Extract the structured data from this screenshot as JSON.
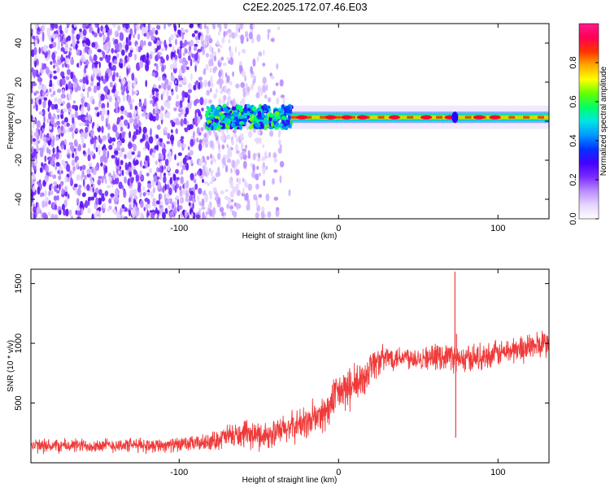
{
  "title": "C2E2.2025.172.07.46.E03",
  "chart_data": [
    {
      "type": "heatmap",
      "xlabel": "Height of straight line (km)",
      "ylabel": "Frequency (Hz)",
      "xlim": [
        -193,
        132
      ],
      "ylim": [
        -50,
        50
      ],
      "xticks": [
        -100,
        0,
        100
      ],
      "yticks": [
        -40,
        -20,
        0,
        20,
        40
      ],
      "colorbar": {
        "label": "Normalized spectral amplitude",
        "range": [
          0,
          1
        ],
        "ticks": [
          0.0,
          0.2,
          0.4,
          0.6,
          0.8
        ],
        "colormap": [
          "#ffffff",
          "#e7d4ff",
          "#b98cff",
          "#7a2cff",
          "#4400ff",
          "#0033ff",
          "#0099ff",
          "#00e5e5",
          "#00ff66",
          "#66ff00",
          "#ffff00",
          "#ffaa00",
          "#ff3300",
          "#ff0055",
          "#ff1a8c"
        ]
      },
      "features": {
        "noise_region_x": [
          -193,
          -40
        ],
        "signal_start_x": -83,
        "signal_center_hz": 2
      }
    },
    {
      "type": "line",
      "xlabel": "Height of straight line (km)",
      "ylabel": "SNR (10 * v/v)",
      "xlim": [
        -193,
        132
      ],
      "ylim": [
        0,
        1620
      ],
      "xticks": [
        -100,
        0,
        100
      ],
      "yticks": [
        500,
        1000,
        1500
      ],
      "color": "#f03a3a",
      "envelope": {
        "x": [
          -193,
          -150,
          -100,
          -82,
          -70,
          -60,
          -50,
          -40,
          -30,
          -22,
          -15,
          -8,
          0,
          5,
          10,
          15,
          20,
          30,
          40,
          50,
          60,
          70,
          72,
          74,
          78,
          85,
          95,
          105,
          115,
          125,
          132
        ],
        "mean": [
          140,
          145,
          150,
          170,
          220,
          230,
          230,
          240,
          300,
          330,
          370,
          420,
          590,
          610,
          640,
          680,
          820,
          880,
          890,
          880,
          880,
          900,
          880,
          860,
          860,
          880,
          900,
          930,
          960,
          980,
          1000
        ],
        "spread": [
          60,
          60,
          60,
          70,
          100,
          110,
          120,
          120,
          130,
          140,
          150,
          160,
          170,
          180,
          180,
          180,
          150,
          110,
          100,
          100,
          100,
          110,
          120,
          120,
          120,
          110,
          110,
          110,
          120,
          120,
          120
        ]
      },
      "spikes": [
        {
          "x": 73,
          "y": 1600
        },
        {
          "x": 74,
          "y": 1080
        },
        {
          "x": 73.5,
          "y": 210
        }
      ]
    }
  ]
}
